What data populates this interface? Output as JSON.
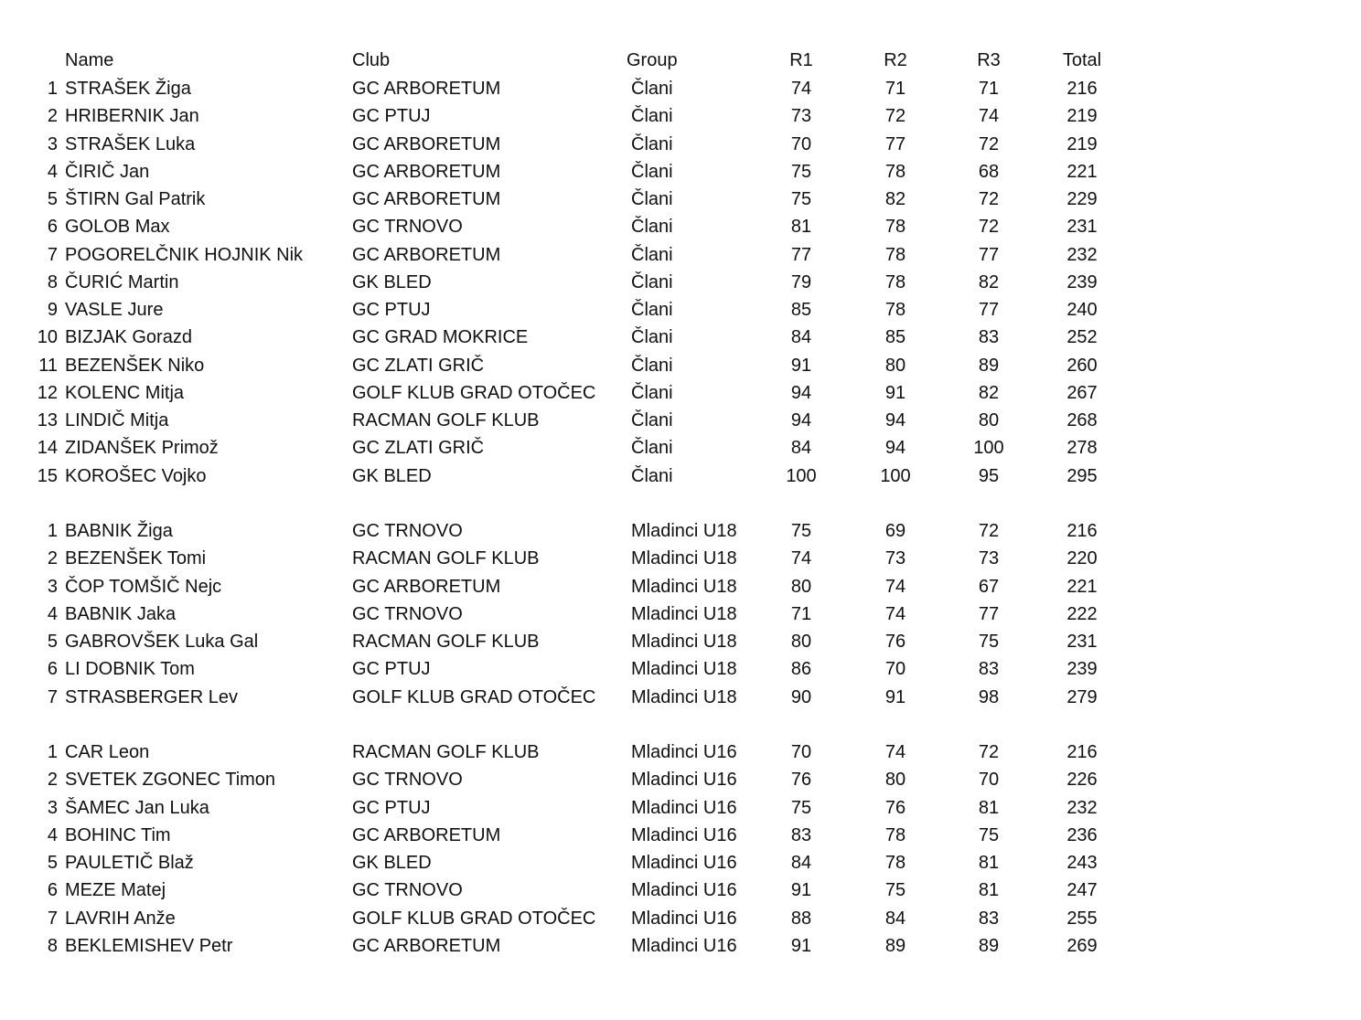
{
  "header": {
    "name": "Name",
    "club": "Club",
    "group": "Group",
    "r1": "R1",
    "r2": "R2",
    "r3": "R3",
    "total": "Total"
  },
  "sections": [
    {
      "rows": [
        [
          "1",
          "STRAŠEK Žiga",
          "GC ARBORETUM",
          "Člani",
          "74",
          "71",
          "71",
          "216"
        ],
        [
          "2",
          "HRIBERNIK Jan",
          "GC PTUJ",
          "Člani",
          "73",
          "72",
          "74",
          "219"
        ],
        [
          "3",
          "STRAŠEK Luka",
          "GC ARBORETUM",
          "Člani",
          "70",
          "77",
          "72",
          "219"
        ],
        [
          "4",
          "ČIRIČ Jan",
          "GC ARBORETUM",
          "Člani",
          "75",
          "78",
          "68",
          "221"
        ],
        [
          "5",
          "ŠTIRN Gal Patrik",
          "GC ARBORETUM",
          "Člani",
          "75",
          "82",
          "72",
          "229"
        ],
        [
          "6",
          "GOLOB Max",
          "GC TRNOVO",
          "Člani",
          "81",
          "78",
          "72",
          "231"
        ],
        [
          "7",
          "POGORELČNIK HOJNIK Nik",
          "GC ARBORETUM",
          "Člani",
          "77",
          "78",
          "77",
          "232"
        ],
        [
          "8",
          "ČURIĆ Martin",
          "GK BLED",
          "Člani",
          "79",
          "78",
          "82",
          "239"
        ],
        [
          "9",
          "VASLE Jure",
          "GC PTUJ",
          "Člani",
          "85",
          "78",
          "77",
          "240"
        ],
        [
          "10",
          "BIZJAK Gorazd",
          "GC GRAD MOKRICE",
          "Člani",
          "84",
          "85",
          "83",
          "252"
        ],
        [
          "11",
          "BEZENŠEK Niko",
          "GC ZLATI GRIČ",
          "Člani",
          "91",
          "80",
          "89",
          "260"
        ],
        [
          "12",
          "KOLENC Mitja",
          "GOLF KLUB GRAD OTOČEC",
          "Člani",
          "94",
          "91",
          "82",
          "267"
        ],
        [
          "13",
          "LINDIČ Mitja",
          "RACMAN GOLF KLUB",
          "Člani",
          "94",
          "94",
          "80",
          "268"
        ],
        [
          "14",
          "ZIDANŠEK Primož",
          "GC ZLATI GRIČ",
          "Člani",
          "84",
          "94",
          "100",
          "278"
        ],
        [
          "15",
          "KOROŠEC Vojko",
          "GK BLED",
          "Člani",
          "100",
          "100",
          "95",
          "295"
        ]
      ]
    },
    {
      "rows": [
        [
          "1",
          "BABNIK Žiga",
          "GC TRNOVO",
          "Mladinci U18",
          "75",
          "69",
          "72",
          "216"
        ],
        [
          "2",
          "BEZENŠEK Tomi",
          "RACMAN GOLF KLUB",
          "Mladinci U18",
          "74",
          "73",
          "73",
          "220"
        ],
        [
          "3",
          "ČOP TOMŠIČ Nejc",
          "GC ARBORETUM",
          "Mladinci U18",
          "80",
          "74",
          "67",
          "221"
        ],
        [
          "4",
          "BABNIK Jaka",
          "GC TRNOVO",
          "Mladinci U18",
          "71",
          "74",
          "77",
          "222"
        ],
        [
          "5",
          "GABROVŠEK Luka Gal",
          "RACMAN GOLF KLUB",
          "Mladinci U18",
          "80",
          "76",
          "75",
          "231"
        ],
        [
          "6",
          "LI DOBNIK Tom",
          "GC PTUJ",
          "Mladinci U18",
          "86",
          "70",
          "83",
          "239"
        ],
        [
          "7",
          "STRASBERGER Lev",
          "GOLF KLUB GRAD OTOČEC",
          "Mladinci U18",
          "90",
          "91",
          "98",
          "279"
        ]
      ]
    },
    {
      "rows": [
        [
          "1",
          "CAR Leon",
          "RACMAN GOLF KLUB",
          "Mladinci U16",
          "70",
          "74",
          "72",
          "216"
        ],
        [
          "2",
          "SVETEK ZGONEC Timon",
          "GC TRNOVO",
          "Mladinci U16",
          "76",
          "80",
          "70",
          "226"
        ],
        [
          "3",
          "ŠAMEC Jan Luka",
          "GC PTUJ",
          "Mladinci U16",
          "75",
          "76",
          "81",
          "232"
        ],
        [
          "4",
          "BOHINC Tim",
          "GC ARBORETUM",
          "Mladinci U16",
          "83",
          "78",
          "75",
          "236"
        ],
        [
          "5",
          "PAULETIČ Blaž",
          "GK BLED",
          "Mladinci U16",
          "84",
          "78",
          "81",
          "243"
        ],
        [
          "6",
          "MEZE Matej",
          "GC TRNOVO",
          "Mladinci U16",
          "91",
          "75",
          "81",
          "247"
        ],
        [
          "7",
          "LAVRIH Anže",
          "GOLF KLUB GRAD OTOČEC",
          "Mladinci U16",
          "88",
          "84",
          "83",
          "255"
        ],
        [
          "8",
          "BEKLEMISHEV Petr",
          "GC ARBORETUM",
          "Mladinci U16",
          "91",
          "89",
          "89",
          "269"
        ]
      ]
    }
  ]
}
